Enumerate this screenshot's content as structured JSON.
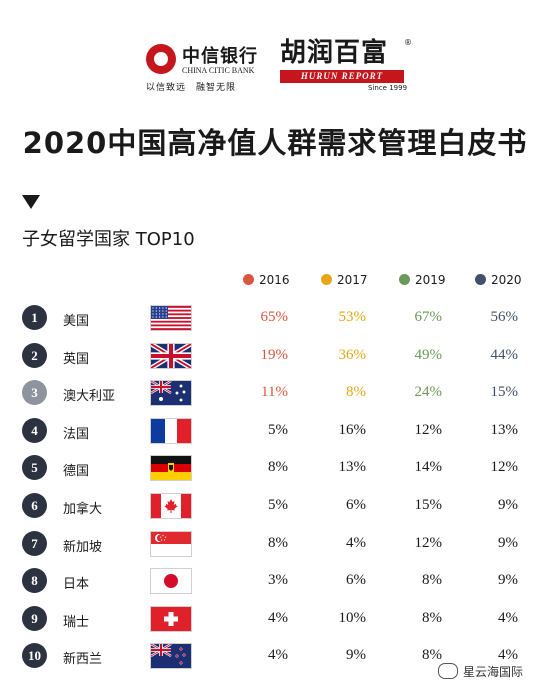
{
  "header": {
    "citic": {
      "name": "中信银行",
      "name_en": "CHINA CITIC BANK",
      "slogan": "以信致远　融智无限"
    },
    "hurun": {
      "name": "胡润百富",
      "bar": "HURUN REPORT",
      "since": "Since 1999",
      "reg": "®"
    }
  },
  "title": "2020中国高净值人群需求管理白皮书",
  "section_title": "子女留学国家 TOP10",
  "colors": {
    "2016": "#d9573e",
    "2017": "#e5a718",
    "2019": "#6a9a59",
    "2020": "#43506a"
  },
  "legend": [
    {
      "label": "2016",
      "color": "#d9573e"
    },
    {
      "label": "2017",
      "color": "#e5a718"
    },
    {
      "label": "2019",
      "color": "#6a9a59"
    },
    {
      "label": "2020",
      "color": "#43506a"
    }
  ],
  "rows": [
    {
      "rank": "1",
      "country": "美国",
      "flag": "us-flag",
      "v2016": "65%",
      "v2017": "53%",
      "v2019": "67%",
      "v2020": "56%"
    },
    {
      "rank": "2",
      "country": "英国",
      "flag": "uk-flag",
      "v2016": "19%",
      "v2017": "36%",
      "v2019": "49%",
      "v2020": "44%"
    },
    {
      "rank": "3",
      "country": "澳大利亚",
      "flag": "australia-flag",
      "v2016": "11%",
      "v2017": "8%",
      "v2019": "24%",
      "v2020": "15%"
    },
    {
      "rank": "4",
      "country": "法国",
      "flag": "france-flag",
      "v2016": "5%",
      "v2017": "16%",
      "v2019": "12%",
      "v2020": "13%"
    },
    {
      "rank": "5",
      "country": "德国",
      "flag": "germany-flag",
      "v2016": "8%",
      "v2017": "13%",
      "v2019": "14%",
      "v2020": "12%"
    },
    {
      "rank": "6",
      "country": "加拿大",
      "flag": "canada-flag",
      "v2016": "5%",
      "v2017": "6%",
      "v2019": "15%",
      "v2020": "9%"
    },
    {
      "rank": "7",
      "country": "新加坡",
      "flag": "singapore-flag",
      "v2016": "8%",
      "v2017": "4%",
      "v2019": "12%",
      "v2020": "9%"
    },
    {
      "rank": "8",
      "country": "日本",
      "flag": "japan-flag",
      "v2016": "3%",
      "v2017": "6%",
      "v2019": "8%",
      "v2020": "9%"
    },
    {
      "rank": "9",
      "country": "瑞士",
      "flag": "switzerland-flag",
      "v2016": "4%",
      "v2017": "10%",
      "v2019": "8%",
      "v2020": "4%"
    },
    {
      "rank": "10",
      "country": "新西兰",
      "flag": "new-zealand-flag",
      "v2016": "4%",
      "v2017": "9%",
      "v2019": "8%",
      "v2020": "4%"
    }
  ],
  "watermark": "星云海国际"
}
